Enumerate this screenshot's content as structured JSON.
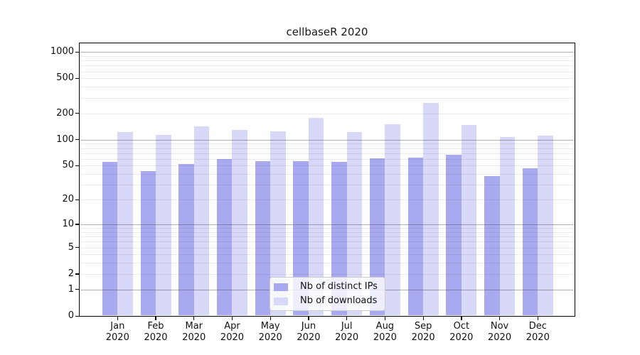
{
  "title": "cellbaseR 2020",
  "chart_data": {
    "type": "bar",
    "title": "cellbaseR 2020",
    "categories": [
      "Jan 2020",
      "Feb 2020",
      "Mar 2020",
      "Apr 2020",
      "May 2020",
      "Jun 2020",
      "Jul 2020",
      "Aug 2020",
      "Sep 2020",
      "Oct 2020",
      "Nov 2020",
      "Dec 2020"
    ],
    "months": [
      "Jan",
      "Feb",
      "Mar",
      "Apr",
      "May",
      "Jun",
      "Jul",
      "Aug",
      "Sep",
      "Oct",
      "Nov",
      "Dec"
    ],
    "year": "2020",
    "series": [
      {
        "name": "Nb of distinct IPs",
        "color": "#a9a9f0",
        "values": [
          55,
          43,
          52,
          60,
          57,
          57,
          55,
          61,
          62,
          67,
          38,
          47
        ]
      },
      {
        "name": "Nb of downloads",
        "color": "#d8d8f8",
        "values": [
          122,
          113,
          143,
          129,
          125,
          177,
          122,
          151,
          263,
          148,
          107,
          111
        ]
      }
    ],
    "yscale": "log1p",
    "yticks": [
      0,
      1,
      2,
      5,
      10,
      20,
      50,
      100,
      200,
      500,
      1000
    ],
    "ylim": [
      0,
      1250
    ],
    "xlabel": "",
    "ylabel": "",
    "grid": true,
    "grid_minor_values": [
      2,
      3,
      4,
      5,
      6,
      7,
      8,
      9,
      20,
      30,
      40,
      50,
      60,
      70,
      80,
      90,
      200,
      300,
      400,
      500,
      600,
      700,
      800,
      900
    ],
    "grid_major_values": [
      1,
      10,
      100,
      1000
    ],
    "legend_position": "lower center"
  },
  "colors": {
    "ips_bar": "#a9a9f0",
    "downloads_bar": "#d8d8f8",
    "major_grid": "#a8a8a8",
    "minor_grid": "#ebebeb",
    "axis": "#000000",
    "background": "#ffffff"
  }
}
